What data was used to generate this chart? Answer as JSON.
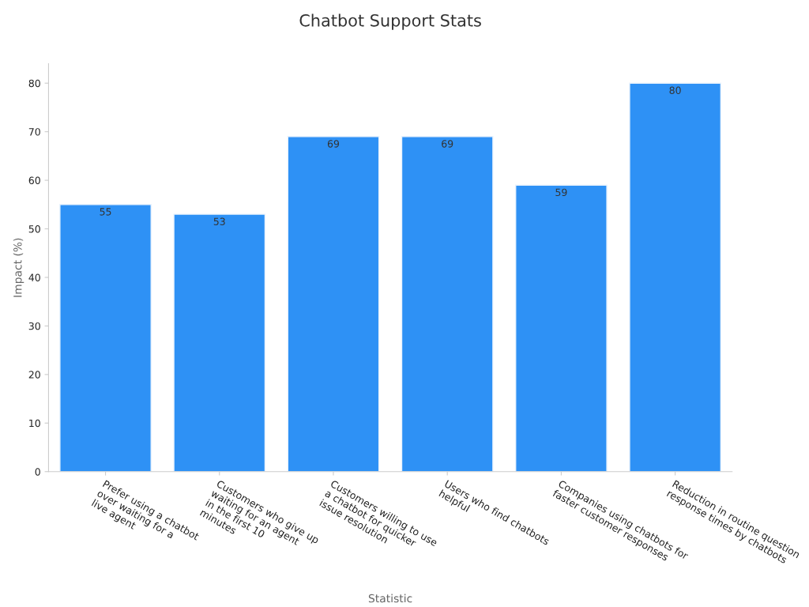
{
  "chart_data": {
    "type": "bar",
    "title": "Chatbot Support Stats",
    "xlabel": "Statistic",
    "ylabel": "Impact (%)",
    "categories": [
      "Prefer using a chatbot\nover waiting for a\nlive agent",
      "Customers who give up\nwaiting for an agent\nin the first 10\nminutes",
      "Customers willing to use\na chatbot for quicker\nissue resolution",
      "Users who find chatbots\nhelpful",
      "Companies using chatbots for\nfaster customer responses",
      "Reduction in routine question\nresponse times by chatbots"
    ],
    "values": [
      55,
      53,
      69,
      69,
      59,
      80
    ],
    "color": "#2e91f5",
    "ylim": [
      0,
      84
    ],
    "yticks": [
      0,
      10,
      20,
      30,
      40,
      50,
      60,
      70,
      80
    ],
    "data_labels": true,
    "grid": false,
    "legend": false
  }
}
